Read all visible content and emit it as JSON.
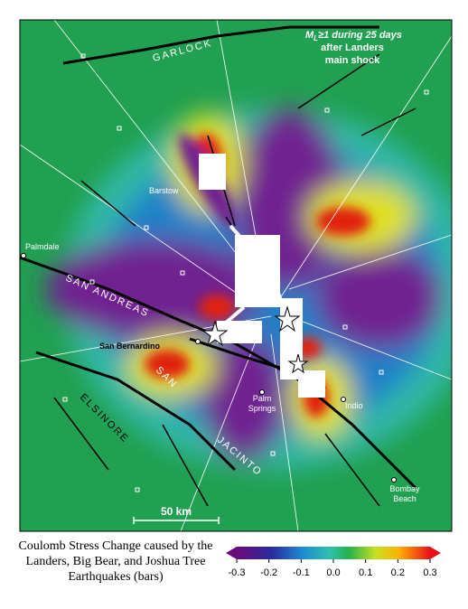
{
  "map": {
    "legend": {
      "magnitude_symbol": "M",
      "magnitude_subscript": "L",
      "line1": "≥1 during 25 days",
      "line2": "after Landers",
      "line3": "main shock"
    },
    "labels": {
      "garlock": "GARLOCK",
      "barstow": "Barstow",
      "palmdale": "Palmdale",
      "san_andreas": "SAN ANDREAS",
      "san_bernardino": "San Bernardino",
      "san": "SAN",
      "elsinore": "ELSINORE",
      "jacinto": "JACINTO",
      "palm_springs": [
        "Palm",
        "Springs"
      ],
      "indio": "Indio",
      "bombay_beach": [
        "Bombay",
        "Beach"
      ]
    },
    "scale_bar": "50 km"
  },
  "caption": [
    "Coulomb Stress Change caused by the",
    "Landers, Big Bear, and Joshua Tree",
    "Earthquakes  (bars)"
  ],
  "colorbar": {
    "lim": [
      -0.3,
      0.3
    ],
    "ticks": [
      -0.3,
      -0.2,
      -0.1,
      {
        "value": 0,
        "label": "0.0"
      },
      0.1,
      0.2,
      0.3
    ]
  }
}
